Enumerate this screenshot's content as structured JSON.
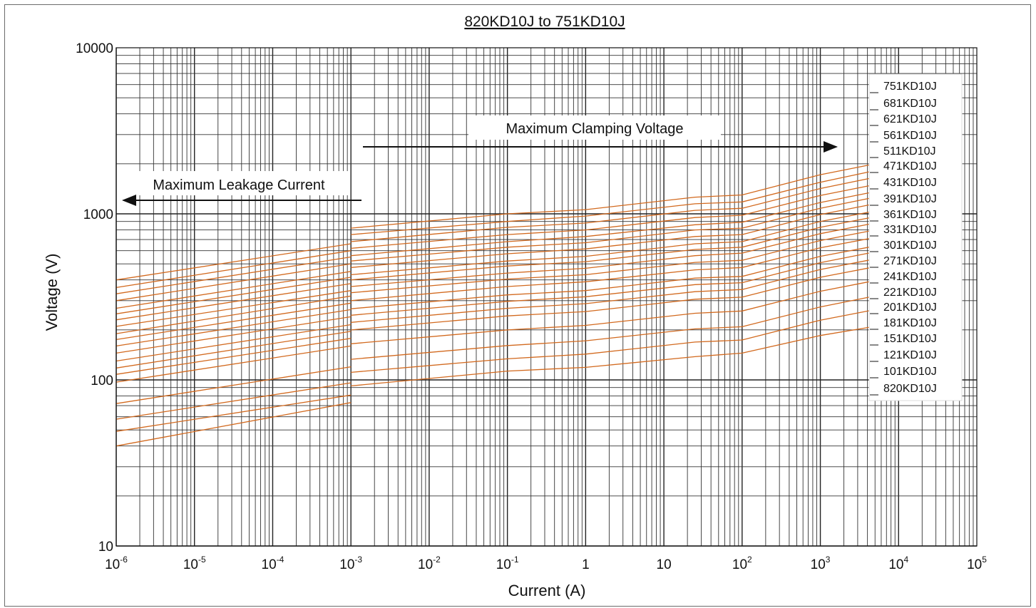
{
  "chart_data": {
    "type": "line",
    "title": "820KD10J to 751KD10J",
    "xlabel": "Current (A)",
    "ylabel": "Voltage (V)",
    "x_scale": "log",
    "y_scale": "log",
    "xlim": [
      1e-06,
      100000
    ],
    "ylim": [
      10,
      10000
    ],
    "grid": true,
    "x_tick_labels": [
      {
        "base": "10",
        "exp": "-6"
      },
      {
        "base": "10",
        "exp": "-5"
      },
      {
        "base": "10",
        "exp": "-4"
      },
      {
        "base": "10",
        "exp": "-3"
      },
      {
        "base": "10",
        "exp": "-2"
      },
      {
        "base": "10",
        "exp": "-1"
      },
      {
        "base": "1",
        "exp": ""
      },
      {
        "base": "10",
        "exp": ""
      },
      {
        "base": "10",
        "exp": "2"
      },
      {
        "base": "10",
        "exp": "3"
      },
      {
        "base": "10",
        "exp": "4"
      },
      {
        "base": "10",
        "exp": "5"
      }
    ],
    "y_tick_labels": [
      "10",
      "100",
      "1000",
      "10000"
    ],
    "annotations": [
      {
        "text": "Maximum Leakage Current",
        "direction": "left"
      },
      {
        "text": "Maximum Clamping Voltage",
        "direction": "right"
      }
    ],
    "legend_position": "right",
    "line_color": "#d2691e",
    "series": [
      {
        "name": "751KD10J",
        "leakage": [
          [
            1e-06,
            400
          ],
          [
            0.001,
            660
          ]
        ],
        "clamping": [
          [
            0.001,
            820
          ],
          [
            0.1,
            1000
          ],
          [
            1,
            1060
          ],
          [
            25,
            1260
          ],
          [
            100,
            1300
          ],
          [
            1000,
            1720
          ],
          [
            5000,
            2000
          ]
        ]
      },
      {
        "name": "681KD10J",
        "leakage": [
          [
            1e-06,
            360
          ],
          [
            0.001,
            600
          ]
        ],
        "clamping": [
          [
            0.001,
            750
          ],
          [
            0.1,
            900
          ],
          [
            1,
            970
          ],
          [
            25,
            1150
          ],
          [
            100,
            1180
          ],
          [
            1000,
            1550
          ],
          [
            5000,
            1820
          ]
        ]
      },
      {
        "name": "621KD10J",
        "leakage": [
          [
            1e-06,
            330
          ],
          [
            0.001,
            550
          ]
        ],
        "clamping": [
          [
            0.001,
            680
          ],
          [
            0.1,
            830
          ],
          [
            1,
            880
          ],
          [
            25,
            1050
          ],
          [
            100,
            1080
          ],
          [
            1000,
            1420
          ],
          [
            5000,
            1660
          ]
        ]
      },
      {
        "name": "561KD10J",
        "leakage": [
          [
            1e-06,
            300
          ],
          [
            0.001,
            500
          ]
        ],
        "clamping": [
          [
            0.001,
            620
          ],
          [
            0.1,
            750
          ],
          [
            1,
            800
          ],
          [
            25,
            950
          ],
          [
            100,
            980
          ],
          [
            1000,
            1290
          ],
          [
            5000,
            1500
          ]
        ]
      },
      {
        "name": "511KD10J",
        "leakage": [
          [
            1e-06,
            270
          ],
          [
            0.001,
            450
          ]
        ],
        "clamping": [
          [
            0.001,
            560
          ],
          [
            0.1,
            680
          ],
          [
            1,
            730
          ],
          [
            25,
            860
          ],
          [
            100,
            890
          ],
          [
            1000,
            1170
          ],
          [
            5000,
            1360
          ]
        ]
      },
      {
        "name": "471KD10J",
        "leakage": [
          [
            1e-06,
            250
          ],
          [
            0.001,
            415
          ]
        ],
        "clamping": [
          [
            0.001,
            520
          ],
          [
            0.1,
            630
          ],
          [
            1,
            670
          ],
          [
            25,
            800
          ],
          [
            100,
            820
          ],
          [
            1000,
            1080
          ],
          [
            5000,
            1260
          ]
        ]
      },
      {
        "name": "431KD10J",
        "leakage": [
          [
            1e-06,
            230
          ],
          [
            0.001,
            380
          ]
        ],
        "clamping": [
          [
            0.001,
            475
          ],
          [
            0.1,
            575
          ],
          [
            1,
            615
          ],
          [
            25,
            730
          ],
          [
            100,
            750
          ],
          [
            1000,
            990
          ],
          [
            5000,
            1150
          ]
        ]
      },
      {
        "name": "391KD10J",
        "leakage": [
          [
            1e-06,
            210
          ],
          [
            0.001,
            345
          ]
        ],
        "clamping": [
          [
            0.001,
            430
          ],
          [
            0.1,
            520
          ],
          [
            1,
            555
          ],
          [
            25,
            660
          ],
          [
            100,
            680
          ],
          [
            1000,
            900
          ],
          [
            5000,
            1040
          ]
        ]
      },
      {
        "name": "361KD10J",
        "leakage": [
          [
            1e-06,
            190
          ],
          [
            0.001,
            320
          ]
        ],
        "clamping": [
          [
            0.001,
            400
          ],
          [
            0.1,
            485
          ],
          [
            1,
            515
          ],
          [
            25,
            610
          ],
          [
            100,
            630
          ],
          [
            1000,
            830
          ],
          [
            5000,
            960
          ]
        ]
      },
      {
        "name": "331KD10J",
        "leakage": [
          [
            1e-06,
            175
          ],
          [
            0.001,
            290
          ]
        ],
        "clamping": [
          [
            0.001,
            365
          ],
          [
            0.1,
            440
          ],
          [
            1,
            470
          ],
          [
            25,
            560
          ],
          [
            100,
            580
          ],
          [
            1000,
            760
          ],
          [
            5000,
            880
          ]
        ]
      },
      {
        "name": "301KD10J",
        "leakage": [
          [
            1e-06,
            160
          ],
          [
            0.001,
            265
          ]
        ],
        "clamping": [
          [
            0.001,
            335
          ],
          [
            0.1,
            405
          ],
          [
            1,
            430
          ],
          [
            25,
            510
          ],
          [
            100,
            525
          ],
          [
            1000,
            690
          ],
          [
            5000,
            800
          ]
        ]
      },
      {
        "name": "271KD10J",
        "leakage": [
          [
            1e-06,
            145
          ],
          [
            0.001,
            240
          ]
        ],
        "clamping": [
          [
            0.001,
            300
          ],
          [
            0.1,
            365
          ],
          [
            1,
            390
          ],
          [
            25,
            460
          ],
          [
            100,
            475
          ],
          [
            1000,
            625
          ],
          [
            5000,
            720
          ]
        ]
      },
      {
        "name": "241KD10J",
        "leakage": [
          [
            1e-06,
            130
          ],
          [
            0.001,
            215
          ]
        ],
        "clamping": [
          [
            0.001,
            268
          ],
          [
            0.1,
            325
          ],
          [
            1,
            345
          ],
          [
            25,
            410
          ],
          [
            100,
            420
          ],
          [
            1000,
            555
          ],
          [
            5000,
            640
          ]
        ]
      },
      {
        "name": "221KD10J",
        "leakage": [
          [
            1e-06,
            118
          ],
          [
            0.001,
            196
          ]
        ],
        "clamping": [
          [
            0.001,
            245
          ],
          [
            0.1,
            297
          ],
          [
            1,
            317
          ],
          [
            25,
            375
          ],
          [
            100,
            385
          ],
          [
            1000,
            508
          ],
          [
            5000,
            590
          ]
        ]
      },
      {
        "name": "201KD10J",
        "leakage": [
          [
            1e-06,
            108
          ],
          [
            0.001,
            178
          ]
        ],
        "clamping": [
          [
            0.001,
            222
          ],
          [
            0.1,
            270
          ],
          [
            1,
            288
          ],
          [
            25,
            340
          ],
          [
            100,
            350
          ],
          [
            1000,
            462
          ],
          [
            5000,
            535
          ]
        ]
      },
      {
        "name": "181KD10J",
        "leakage": [
          [
            1e-06,
            97
          ],
          [
            0.001,
            160
          ]
        ],
        "clamping": [
          [
            0.001,
            200
          ],
          [
            0.1,
            243
          ],
          [
            1,
            258
          ],
          [
            25,
            306
          ],
          [
            100,
            315
          ],
          [
            1000,
            415
          ],
          [
            5000,
            480
          ]
        ]
      },
      {
        "name": "151KD10J",
        "leakage": [
          [
            1e-06,
            72
          ],
          [
            0.001,
            120
          ]
        ],
        "clamping": [
          [
            0.001,
            165
          ],
          [
            0.1,
            200
          ],
          [
            1,
            213
          ],
          [
            25,
            252
          ],
          [
            100,
            260
          ],
          [
            1000,
            342
          ],
          [
            5000,
            396
          ]
        ]
      },
      {
        "name": "121KD10J",
        "leakage": [
          [
            1e-06,
            58
          ],
          [
            0.001,
            96
          ]
        ],
        "clamping": [
          [
            0.001,
            133
          ],
          [
            0.1,
            161
          ],
          [
            1,
            172
          ],
          [
            25,
            203
          ],
          [
            100,
            209
          ],
          [
            1000,
            275
          ],
          [
            5000,
            320
          ]
        ]
      },
      {
        "name": "101KD10J",
        "leakage": [
          [
            1e-06,
            49
          ],
          [
            0.001,
            81
          ]
        ],
        "clamping": [
          [
            0.001,
            111
          ],
          [
            0.1,
            134
          ],
          [
            1,
            143
          ],
          [
            25,
            169
          ],
          [
            100,
            174
          ],
          [
            1000,
            229
          ],
          [
            5000,
            265
          ]
        ]
      },
      {
        "name": "820KD10J",
        "leakage": [
          [
            1e-06,
            40
          ],
          [
            0.001,
            73
          ]
        ],
        "clamping": [
          [
            0.001,
            92
          ],
          [
            0.1,
            113
          ],
          [
            1,
            119
          ],
          [
            25,
            138
          ],
          [
            100,
            145
          ],
          [
            1000,
            185
          ],
          [
            5000,
            210
          ]
        ]
      }
    ]
  }
}
